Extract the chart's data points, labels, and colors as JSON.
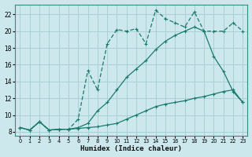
{
  "background_color": "#cce8ec",
  "grid_color": "#aacfd6",
  "line_color": "#1a7a6e",
  "xlabel": "Humidex (Indice chaleur)",
  "xlim": [
    -0.5,
    23.5
  ],
  "ylim": [
    7.5,
    23.2
  ],
  "xticks": [
    0,
    1,
    2,
    3,
    4,
    5,
    6,
    7,
    8,
    9,
    10,
    11,
    12,
    13,
    14,
    15,
    16,
    17,
    18,
    19,
    20,
    21,
    22,
    23
  ],
  "yticks": [
    8,
    10,
    12,
    14,
    16,
    18,
    20,
    22
  ],
  "line1_x": [
    0,
    1,
    2,
    3,
    4,
    5,
    6,
    7,
    8,
    9,
    10,
    11,
    12,
    13,
    14,
    15,
    16,
    17,
    18,
    19,
    20,
    21,
    22,
    23
  ],
  "line1_y": [
    8.5,
    8.2,
    9.2,
    8.2,
    8.3,
    8.3,
    8.4,
    8.5,
    8.6,
    8.8,
    9.0,
    9.5,
    10.0,
    10.5,
    11.0,
    11.3,
    11.5,
    11.7,
    12.0,
    12.2,
    12.5,
    12.8,
    13.0,
    11.5
  ],
  "line2_x": [
    0,
    1,
    2,
    3,
    4,
    5,
    6,
    7,
    8,
    9,
    10,
    11,
    12,
    13,
    14,
    15,
    16,
    17,
    18,
    19,
    20,
    21,
    22,
    23
  ],
  "line2_y": [
    8.5,
    8.2,
    9.2,
    8.2,
    8.3,
    8.3,
    8.5,
    9.0,
    10.5,
    11.5,
    13.0,
    14.5,
    15.5,
    16.5,
    17.8,
    18.8,
    19.5,
    20.0,
    20.5,
    20.0,
    17.0,
    15.2,
    12.8,
    11.5
  ],
  "line3_x": [
    0,
    1,
    2,
    3,
    4,
    5,
    6,
    7,
    8,
    9,
    10,
    11,
    12,
    13,
    14,
    15,
    16,
    17,
    18,
    19,
    20,
    21,
    22,
    23
  ],
  "line3_y": [
    8.5,
    8.2,
    9.2,
    8.2,
    8.3,
    8.3,
    9.5,
    15.3,
    13.0,
    18.5,
    20.2,
    20.0,
    20.3,
    18.5,
    22.5,
    21.5,
    21.0,
    20.5,
    22.3,
    20.0,
    20.0,
    20.0,
    21.0,
    20.0
  ]
}
